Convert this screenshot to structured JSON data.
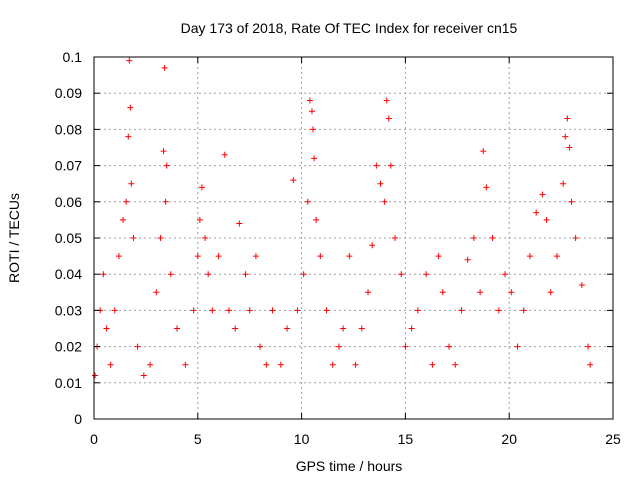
{
  "chart_data": {
    "type": "scatter",
    "title": "Day 173 of 2018, Rate Of TEC Index for receiver cn15",
    "xlabel": "GPS time / hours",
    "ylabel": "ROTI / TECUs",
    "xlim": [
      0,
      25
    ],
    "ylim": [
      0,
      0.1
    ],
    "x_ticks": [
      "0",
      "5",
      "10",
      "15",
      "20",
      "25"
    ],
    "y_ticks": [
      "0",
      "0.01",
      "0.02",
      "0.03",
      "0.04",
      "0.05",
      "0.06",
      "0.07",
      "0.08",
      "0.09",
      "0.1"
    ],
    "grid": true,
    "marker": "+",
    "color": "#ff0000",
    "series": [
      {
        "x": [
          0.05,
          0.15,
          0.3,
          0.45,
          0.6,
          0.8,
          1.0,
          1.2,
          1.4,
          1.55,
          1.65,
          1.7,
          1.75,
          1.8,
          1.9,
          2.1,
          2.4,
          2.7,
          3.0,
          3.2,
          3.35,
          3.4,
          3.45,
          3.5,
          3.7,
          4.0,
          4.4,
          4.8,
          5.0,
          5.1,
          5.2,
          5.35,
          5.5,
          5.7,
          6.0,
          6.3,
          6.5,
          6.8,
          7.0,
          7.3,
          7.5,
          7.8,
          8.0,
          8.3,
          8.6,
          9.0,
          9.3,
          9.6,
          9.8,
          10.1,
          10.3,
          10.4,
          10.5,
          10.55,
          10.6,
          10.7,
          10.9,
          11.2,
          11.5,
          11.8,
          12.0,
          12.3,
          12.6,
          12.9,
          13.2,
          13.4,
          13.6,
          13.8,
          14.0,
          14.1,
          14.2,
          14.3,
          14.5,
          14.8,
          15.0,
          15.3,
          15.6,
          16.0,
          16.3,
          16.6,
          16.8,
          17.1,
          17.4,
          17.7,
          18.0,
          18.3,
          18.6,
          18.75,
          18.9,
          19.2,
          19.5,
          19.8,
          20.1,
          20.4,
          20.7,
          21.0,
          21.3,
          21.6,
          21.8,
          22.0,
          22.3,
          22.6,
          22.7,
          22.8,
          22.9,
          23.0,
          23.2,
          23.5,
          23.8,
          23.9
        ],
        "y": [
          0.012,
          0.02,
          0.03,
          0.04,
          0.025,
          0.015,
          0.03,
          0.045,
          0.055,
          0.06,
          0.078,
          0.099,
          0.086,
          0.065,
          0.05,
          0.02,
          0.012,
          0.015,
          0.035,
          0.05,
          0.074,
          0.097,
          0.06,
          0.07,
          0.04,
          0.025,
          0.015,
          0.03,
          0.045,
          0.055,
          0.064,
          0.05,
          0.04,
          0.03,
          0.045,
          0.073,
          0.03,
          0.025,
          0.054,
          0.04,
          0.03,
          0.045,
          0.02,
          0.015,
          0.03,
          0.015,
          0.025,
          0.066,
          0.03,
          0.04,
          0.06,
          0.088,
          0.085,
          0.08,
          0.072,
          0.055,
          0.045,
          0.03,
          0.015,
          0.02,
          0.025,
          0.045,
          0.015,
          0.025,
          0.035,
          0.048,
          0.07,
          0.065,
          0.06,
          0.088,
          0.083,
          0.07,
          0.05,
          0.04,
          0.02,
          0.025,
          0.03,
          0.04,
          0.015,
          0.045,
          0.035,
          0.02,
          0.015,
          0.03,
          0.044,
          0.05,
          0.035,
          0.074,
          0.064,
          0.05,
          0.03,
          0.04,
          0.035,
          0.02,
          0.03,
          0.045,
          0.057,
          0.062,
          0.055,
          0.035,
          0.045,
          0.065,
          0.078,
          0.083,
          0.075,
          0.06,
          0.05,
          0.037,
          0.02,
          0.015
        ]
      }
    ]
  }
}
